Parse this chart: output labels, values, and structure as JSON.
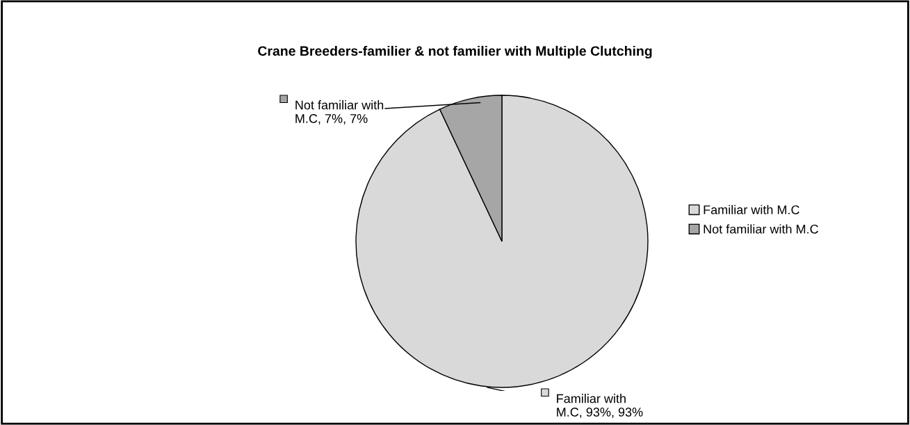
{
  "chart_data": {
    "type": "pie",
    "title": "Crane Breeders-familier & not familier with Multiple Clutching",
    "categories": [
      "Familiar with M.C",
      "Not familiar with M.C"
    ],
    "values": [
      93,
      7
    ],
    "colors": [
      "#d9d9d9",
      "#a6a6a6"
    ],
    "value_labels": [
      "Familiar with\nM.C, 93%, 93%",
      "Not familiar with\nM.C, 7%, 7%"
    ],
    "legend": "right"
  }
}
